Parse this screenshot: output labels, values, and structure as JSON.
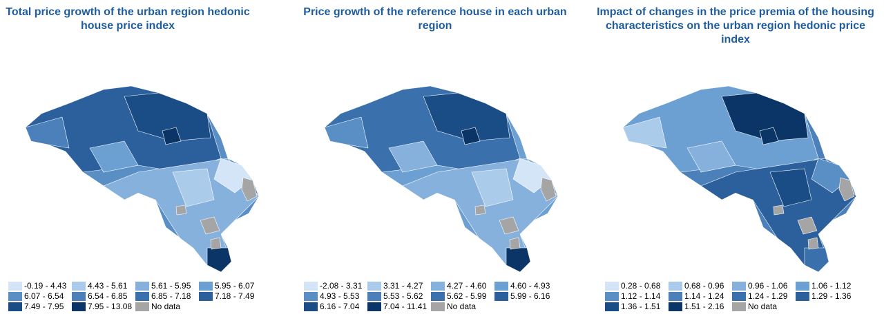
{
  "panels": [
    {
      "title": "Total price growth of the urban region hedonic house price index",
      "legend": [
        {
          "label": "-0.19 - 4.43",
          "color": "#d3e5f6"
        },
        {
          "label": "4.43 - 5.61",
          "color": "#abcbeb"
        },
        {
          "label": "5.61 - 5.95",
          "color": "#86b1dd"
        },
        {
          "label": "5.95 - 6.07",
          "color": "#6c9fd2"
        },
        {
          "label": "6.07 - 6.54",
          "color": "#5a8fc6"
        },
        {
          "label": "6.54 - 6.85",
          "color": "#4b80ba"
        },
        {
          "label": "6.85 - 7.18",
          "color": "#3a70ab"
        },
        {
          "label": "7.18 - 7.49",
          "color": "#2b609c"
        },
        {
          "label": "7.49 - 7.95",
          "color": "#1a4d86"
        },
        {
          "label": "7.95 - 13.08",
          "color": "#0b3566"
        },
        {
          "label": "No data",
          "color": "#a5a5a5"
        }
      ]
    },
    {
      "title": "Price growth of the reference house in each urban region",
      "legend": [
        {
          "label": "-2.08 - 3.31",
          "color": "#d3e5f6"
        },
        {
          "label": "3.31 - 4.27",
          "color": "#abcbeb"
        },
        {
          "label": "4.27 - 4.60",
          "color": "#86b1dd"
        },
        {
          "label": "4.60 - 4.93",
          "color": "#6c9fd2"
        },
        {
          "label": "4.93 - 5.53",
          "color": "#5a8fc6"
        },
        {
          "label": "5.53 - 5.62",
          "color": "#4b80ba"
        },
        {
          "label": "5.62 - 5.99",
          "color": "#3a70ab"
        },
        {
          "label": "5.99 - 6.16",
          "color": "#2b609c"
        },
        {
          "label": "6.16 - 7.04",
          "color": "#1a4d86"
        },
        {
          "label": "7.04 - 11.41",
          "color": "#0b3566"
        },
        {
          "label": "No data",
          "color": "#a5a5a5"
        }
      ]
    },
    {
      "title": "Impact of changes in the price premia of the housing characteristics on the urban region hedonic price index",
      "legend": [
        {
          "label": "0.28 - 0.68",
          "color": "#d3e5f6"
        },
        {
          "label": "0.68 - 0.96",
          "color": "#abcbeb"
        },
        {
          "label": "0.96 - 1.06",
          "color": "#86b1dd"
        },
        {
          "label": "1.06 - 1.12",
          "color": "#6c9fd2"
        },
        {
          "label": "1.12 - 1.14",
          "color": "#5a8fc6"
        },
        {
          "label": "1.14 - 1.24",
          "color": "#4b80ba"
        },
        {
          "label": "1.24 - 1.29",
          "color": "#3a70ab"
        },
        {
          "label": "1.29 - 1.36",
          "color": "#2b609c"
        },
        {
          "label": "1.36 - 1.51",
          "color": "#1a4d86"
        },
        {
          "label": "1.51 - 2.16",
          "color": "#0b3566"
        },
        {
          "label": "No data",
          "color": "#a5a5a5"
        }
      ]
    }
  ]
}
